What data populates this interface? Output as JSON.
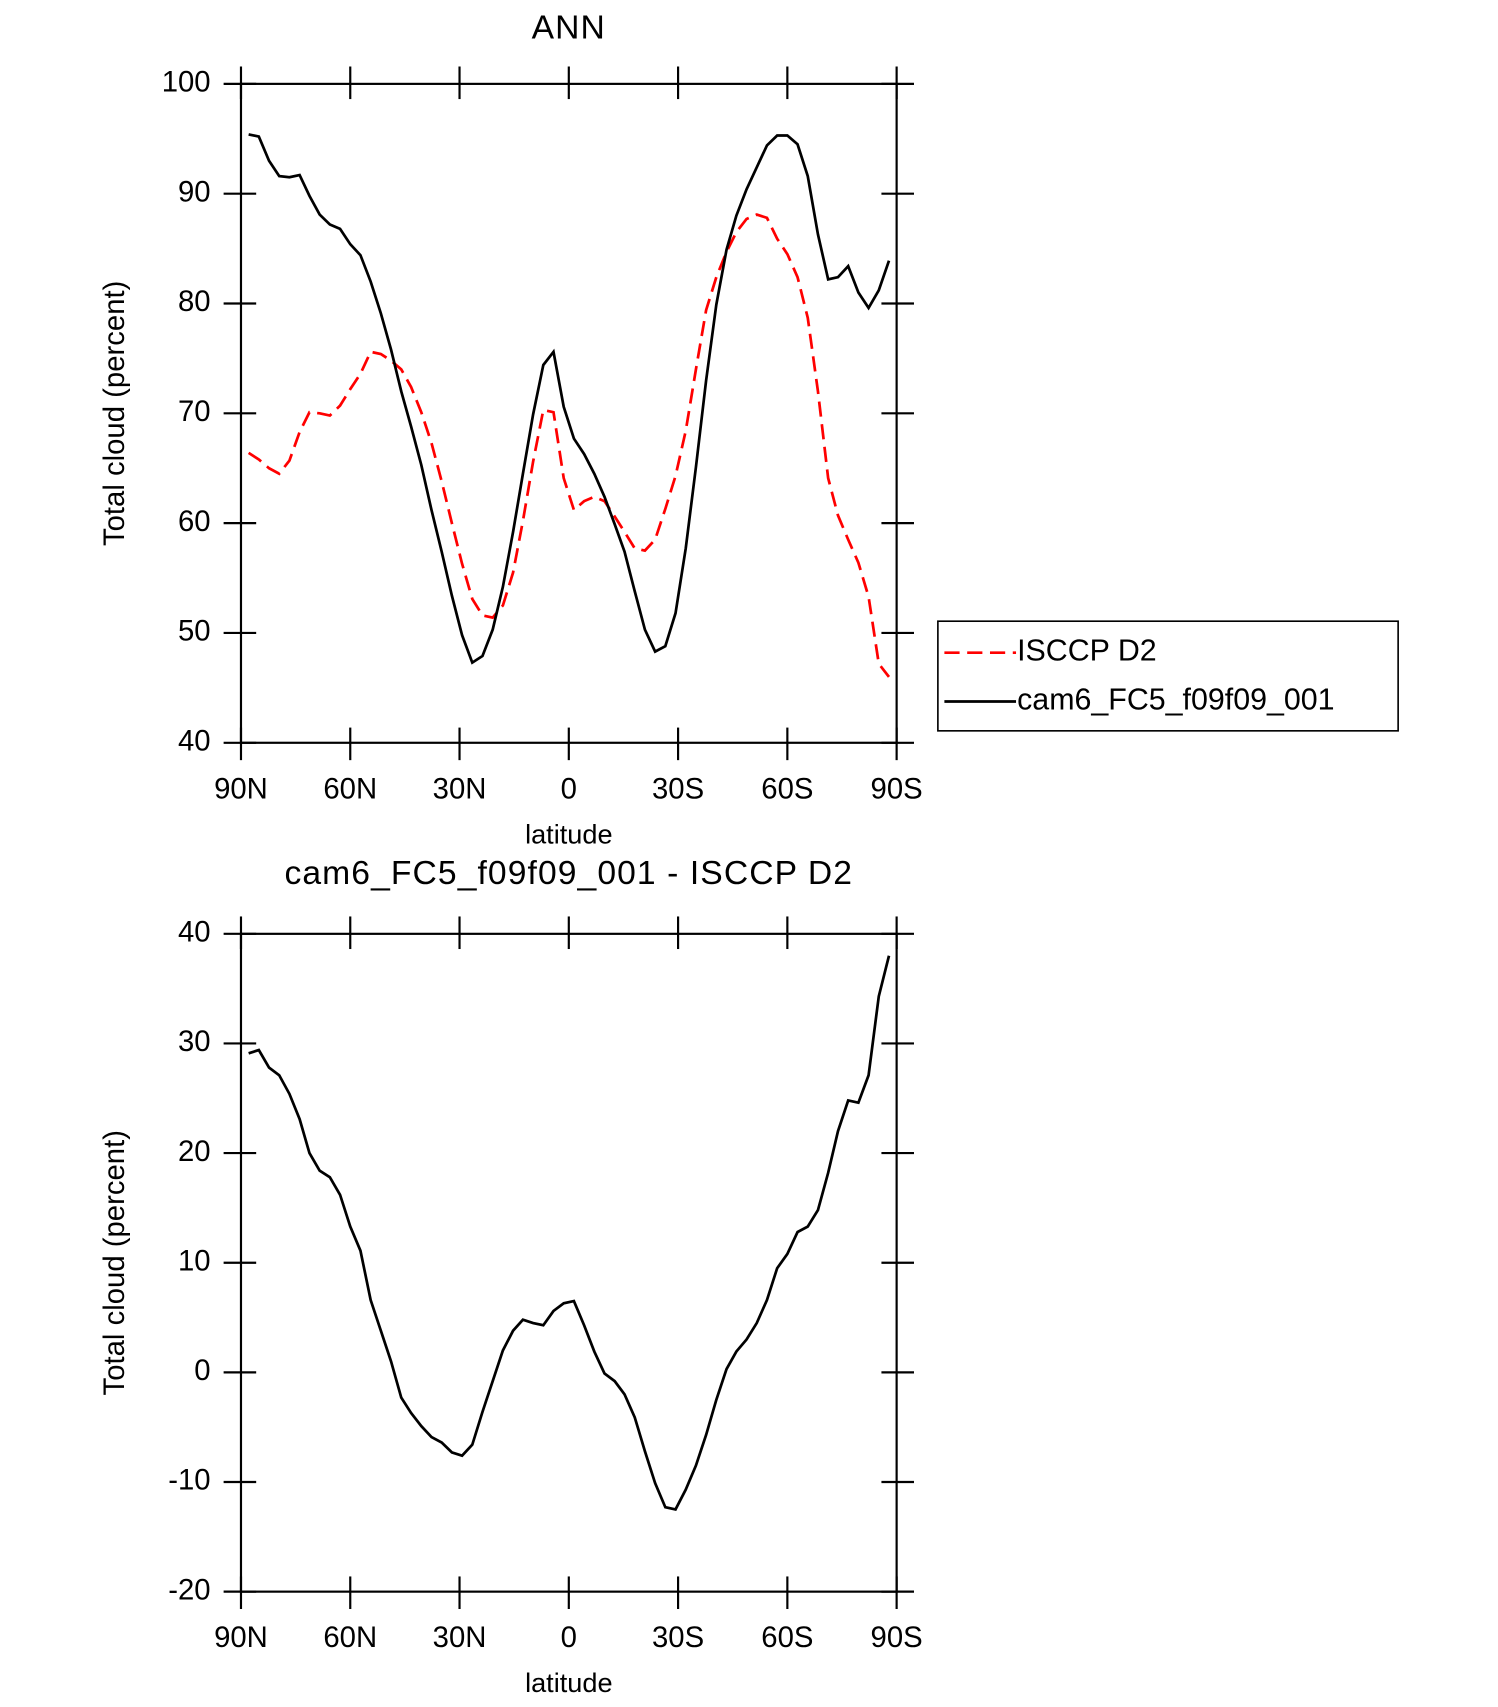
{
  "chart_data": [
    {
      "type": "line",
      "title": "ANN",
      "x_label": "latitude",
      "y_label": "Total cloud (percent)",
      "x": [
        87.9,
        85.1,
        82.3,
        79.5,
        76.7,
        73.9,
        71.2,
        68.4,
        65.6,
        62.8,
        60.0,
        57.2,
        54.4,
        51.6,
        48.8,
        46.0,
        43.3,
        40.5,
        37.7,
        34.9,
        32.1,
        29.3,
        26.5,
        23.7,
        20.9,
        18.1,
        15.3,
        12.6,
        9.8,
        7.0,
        4.2,
        1.4,
        -1.4,
        -4.2,
        -7.0,
        -9.8,
        -12.6,
        -15.3,
        -18.1,
        -20.9,
        -23.7,
        -26.5,
        -29.3,
        -32.1,
        -34.9,
        -37.7,
        -40.5,
        -43.3,
        -46.0,
        -48.8,
        -51.6,
        -54.4,
        -57.2,
        -60.0,
        -62.8,
        -65.6,
        -68.4,
        -71.2,
        -73.9,
        -76.7,
        -79.5,
        -82.3,
        -85.1,
        -87.9
      ],
      "series": [
        {
          "name": "ISCCP D2",
          "color": "#ff0000",
          "dashed": true,
          "values": [
            66.4,
            65.8,
            65.0,
            64.5,
            65.7,
            68.3,
            70.1,
            70.0,
            69.8,
            70.7,
            72.2,
            73.6,
            75.6,
            75.4,
            74.8,
            74.0,
            72.4,
            70.1,
            67.3,
            63.8,
            60.0,
            56.3,
            53.1,
            51.6,
            51.4,
            52.5,
            55.5,
            60.2,
            65.6,
            70.3,
            70.1,
            64.1,
            61.2,
            62.0,
            62.4,
            62.0,
            60.6,
            59.2,
            57.7,
            57.5,
            58.5,
            61.3,
            64.3,
            68.4,
            74.0,
            79.4,
            82.4,
            84.7,
            86.5,
            87.7,
            88.1,
            87.8,
            85.9,
            84.5,
            82.4,
            78.7,
            72.0,
            64.1,
            60.7,
            58.5,
            56.4,
            53.3,
            47.2,
            46.0
          ]
        },
        {
          "name": "cam6_FC5_f09f09_001",
          "color": "#000000",
          "dashed": false,
          "values": [
            95.4,
            95.2,
            93.0,
            91.6,
            91.5,
            91.7,
            89.8,
            88.1,
            87.2,
            86.8,
            85.4,
            84.4,
            82.0,
            79.1,
            75.8,
            72.0,
            68.8,
            65.3,
            61.2,
            57.4,
            53.4,
            49.8,
            47.3,
            47.9,
            50.3,
            54.2,
            59.2,
            64.5,
            69.9,
            74.4,
            75.6,
            70.6,
            67.7,
            66.3,
            64.5,
            62.4,
            59.9,
            57.4,
            53.8,
            50.3,
            48.3,
            48.8,
            51.8,
            57.7,
            65.1,
            73.0,
            79.9,
            84.9,
            88.0,
            90.4,
            92.4,
            94.4,
            95.3,
            95.3,
            94.5,
            91.6,
            86.3,
            82.2,
            82.4,
            83.4,
            81.0,
            79.6,
            81.2,
            83.9
          ]
        }
      ],
      "xlim": [
        90,
        -90
      ],
      "xticks": [
        {
          "value": 90,
          "label": "90N"
        },
        {
          "value": 60,
          "label": "60N"
        },
        {
          "value": 30,
          "label": "30N"
        },
        0,
        {
          "value": -30,
          "label": "30S"
        },
        {
          "value": -60,
          "label": "60S"
        },
        {
          "value": -90,
          "label": "90S"
        }
      ],
      "ylim": [
        40,
        100
      ],
      "yticks": [
        40,
        50,
        60,
        70,
        80,
        90,
        100
      ],
      "legend": "right"
    },
    {
      "type": "line",
      "title": "cam6_FC5_f09f09_001 - ISCCP D2",
      "x_label": "latitude",
      "y_label": "Total cloud (percent)",
      "x": [
        87.9,
        85.1,
        82.3,
        79.5,
        76.7,
        73.9,
        71.2,
        68.4,
        65.6,
        62.8,
        60.0,
        57.2,
        54.4,
        51.6,
        48.8,
        46.0,
        43.3,
        40.5,
        37.7,
        34.9,
        32.1,
        29.3,
        26.5,
        23.7,
        20.9,
        18.1,
        15.3,
        12.6,
        9.8,
        7.0,
        4.2,
        1.4,
        -1.4,
        -4.2,
        -7.0,
        -9.8,
        -12.6,
        -15.3,
        -18.1,
        -20.9,
        -23.7,
        -26.5,
        -29.3,
        -32.1,
        -34.9,
        -37.7,
        -40.5,
        -43.3,
        -46.0,
        -48.8,
        -51.6,
        -54.4,
        -57.2,
        -60.0,
        -62.8,
        -65.6,
        -68.4,
        -71.2,
        -73.9,
        -76.7,
        -79.5,
        -82.3,
        -85.1,
        -87.9
      ],
      "series": [
        {
          "color": "#000000",
          "dashed": false,
          "values": [
            29.1,
            29.4,
            27.8,
            27.1,
            25.4,
            23.1,
            20.0,
            18.4,
            17.8,
            16.2,
            13.3,
            11.1,
            6.6,
            3.8,
            1.0,
            -2.3,
            -3.7,
            -4.9,
            -5.9,
            -6.4,
            -7.3,
            -7.6,
            -6.6,
            -3.6,
            -0.8,
            2.0,
            3.8,
            4.8,
            4.5,
            4.3,
            5.6,
            6.3,
            6.5,
            4.3,
            1.9,
            -0.1,
            -0.8,
            -2.0,
            -4.1,
            -7.2,
            -10.1,
            -12.3,
            -12.5,
            -10.7,
            -8.5,
            -5.7,
            -2.5,
            0.3,
            1.9,
            3.0,
            4.5,
            6.6,
            9.5,
            10.8,
            12.8,
            13.3,
            14.8,
            18.2,
            22.0,
            24.8,
            24.6,
            27.1,
            34.3,
            38.0
          ]
        }
      ],
      "xlim": [
        90,
        -90
      ],
      "xticks": [
        {
          "value": 90,
          "label": "90N"
        },
        {
          "value": 60,
          "label": "60N"
        },
        {
          "value": 30,
          "label": "30N"
        },
        0,
        {
          "value": -30,
          "label": "30S"
        },
        {
          "value": -60,
          "label": "60S"
        },
        {
          "value": -90,
          "label": "90S"
        }
      ],
      "ylim": [
        -20,
        40
      ],
      "yticks": [
        -20,
        -10,
        0,
        10,
        20,
        30,
        40
      ]
    }
  ]
}
